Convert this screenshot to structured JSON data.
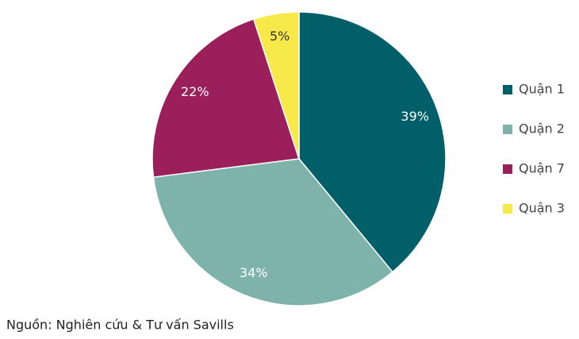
{
  "chart_data": {
    "type": "pie",
    "categories": [
      "Quận 1",
      "Quận 2",
      "Quận 7",
      "Quận 3"
    ],
    "values": [
      39,
      34,
      22,
      5
    ],
    "value_labels": [
      "39%",
      "34%",
      "22%",
      "5%"
    ],
    "colors": [
      "#005f68",
      "#7db3aa",
      "#9b1f5b",
      "#f7e94a"
    ],
    "label_colors": [
      "#ffffff",
      "#ffffff",
      "#ffffff",
      "#333333"
    ],
    "legend": "right",
    "source": "Nguồn: Nghiên cứu & Tư vấn Savills"
  }
}
